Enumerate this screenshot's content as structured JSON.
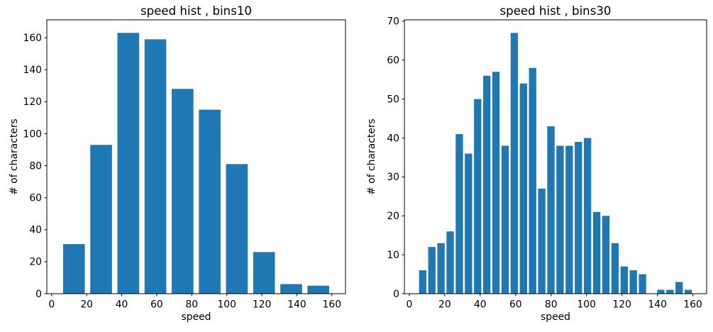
{
  "figure": {
    "background": "#ffffff",
    "text_color": "#000000",
    "axis_color": "#000000",
    "bar_color": "#1f77b4"
  },
  "chart_data": [
    {
      "type": "bar",
      "title": "speed hist , bins10",
      "xlabel": "speed",
      "ylabel": "# of characters",
      "bins": 10,
      "bin_start": 5,
      "bin_end": 160,
      "bar_rel_width": 0.8,
      "counts": [
        31,
        93,
        163,
        159,
        128,
        115,
        81,
        26,
        6,
        5
      ],
      "xticks": [
        0,
        20,
        40,
        60,
        80,
        100,
        120,
        140,
        160
      ],
      "yticks": [
        0,
        20,
        40,
        60,
        80,
        100,
        120,
        140,
        160
      ],
      "xlim": [
        -2.75,
        167.75
      ],
      "ylim": [
        0,
        171.15
      ],
      "grid": false,
      "legend": null
    },
    {
      "type": "bar",
      "title": "speed hist , bins30",
      "xlabel": "speed",
      "ylabel": "# of characters",
      "bins": 30,
      "bin_start": 5,
      "bin_end": 160,
      "bar_rel_width": 0.8,
      "counts": [
        6,
        12,
        13,
        16,
        41,
        36,
        50,
        56,
        57,
        38,
        67,
        54,
        58,
        27,
        43,
        38,
        38,
        39,
        40,
        21,
        20,
        13,
        7,
        6,
        5,
        0,
        1,
        1,
        3,
        1
      ],
      "xticks": [
        0,
        20,
        40,
        60,
        80,
        100,
        120,
        140,
        160
      ],
      "yticks": [
        0,
        10,
        20,
        30,
        40,
        50,
        60,
        70
      ],
      "xlim": [
        -2.75,
        167.75
      ],
      "ylim": [
        0,
        70.35
      ],
      "grid": false,
      "legend": null
    }
  ]
}
